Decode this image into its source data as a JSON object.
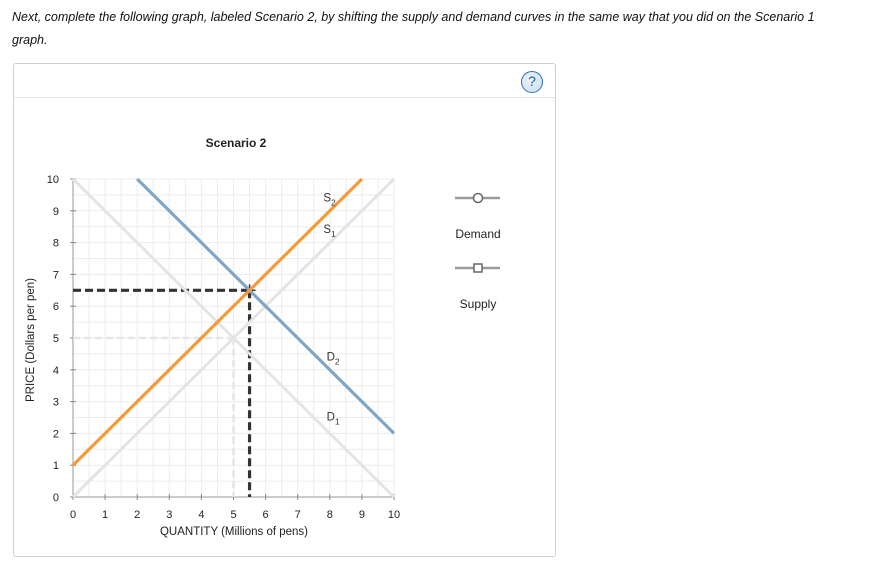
{
  "instruction": {
    "line1": "Next, complete the following graph, labeled Scenario 2, by shifting the supply and demand curves in the same way that you did on the Scenario 1",
    "line2": "graph."
  },
  "help_button": {
    "label": "?"
  },
  "legend": {
    "items": [
      {
        "label": "Demand",
        "marker": "circle-marker",
        "color": "#9a9a9a"
      },
      {
        "label": "Supply",
        "marker": "square-marker",
        "color": "#9a9a9a"
      }
    ]
  },
  "chart_data": {
    "type": "line",
    "title": "Scenario 2",
    "xlabel": "QUANTITY (Millions of pens)",
    "ylabel": "PRICE (Dollars per pen)",
    "xlim": [
      0,
      10
    ],
    "ylim": [
      0,
      10
    ],
    "xticks": [
      0,
      1,
      2,
      3,
      4,
      5,
      6,
      7,
      8,
      9,
      10
    ],
    "yticks": [
      0,
      1,
      2,
      3,
      4,
      5,
      6,
      7,
      8,
      9,
      10
    ],
    "grid": true,
    "series": [
      {
        "name": "D1",
        "label_main": "D",
        "label_sub": "1",
        "label_at": [
          7.9,
          2.4
        ],
        "color": "#e4e4e4",
        "points": [
          [
            0,
            10
          ],
          [
            10,
            0
          ]
        ]
      },
      {
        "name": "S1",
        "label_main": "S",
        "label_sub": "1",
        "label_at": [
          7.8,
          8.3
        ],
        "color": "#e4e4e4",
        "points": [
          [
            0,
            0
          ],
          [
            10,
            10
          ]
        ]
      },
      {
        "name": "D2",
        "label_main": "D",
        "label_sub": "2",
        "label_at": [
          7.9,
          4.3
        ],
        "color": "#7ea7c7",
        "points": [
          [
            2,
            10
          ],
          [
            10,
            2
          ]
        ]
      },
      {
        "name": "S2",
        "label_main": "S",
        "label_sub": "2",
        "label_at": [
          7.8,
          9.3
        ],
        "color": "#f7983a",
        "points": [
          [
            0,
            1
          ],
          [
            9,
            10
          ]
        ]
      }
    ],
    "equilibria": [
      {
        "name": "original",
        "x": 5,
        "y": 5,
        "color": "#e6e6e6"
      },
      {
        "name": "new",
        "x": 5.5,
        "y": 6.5,
        "color": "#333333"
      }
    ]
  }
}
